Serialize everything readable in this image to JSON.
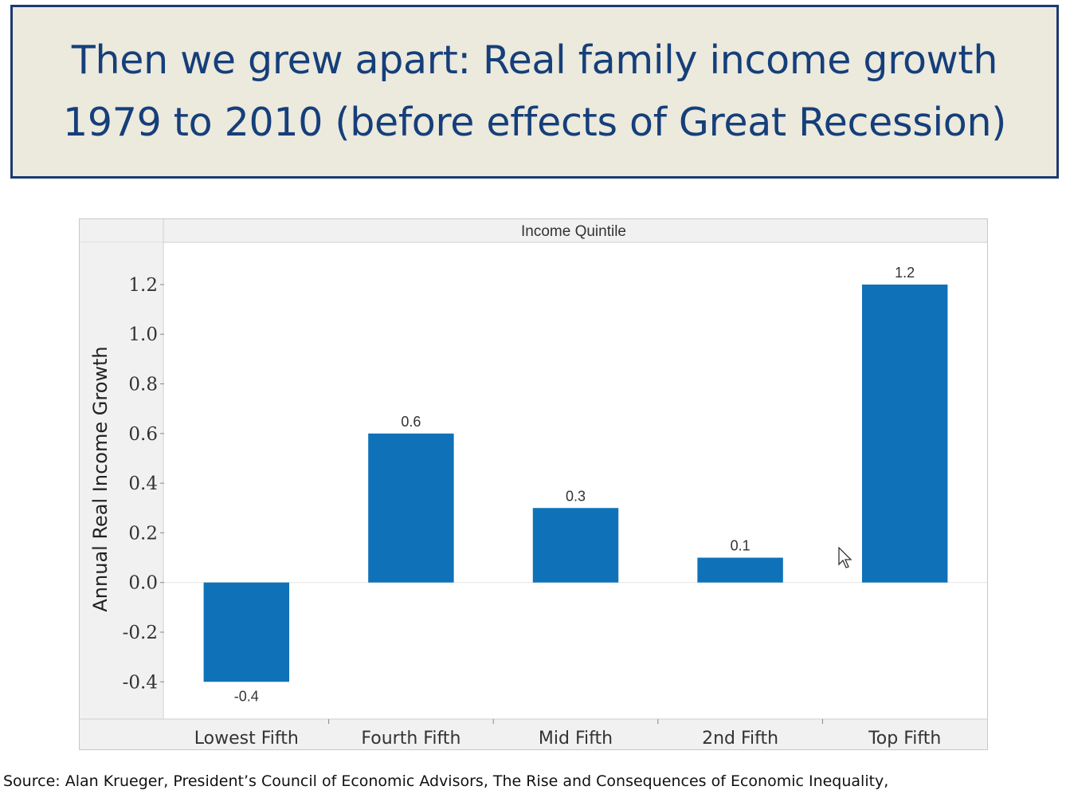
{
  "slide": {
    "title_line1": "Then we grew apart: Real family income growth",
    "title_line2": "1979 to 2010 (before effects of Great Recession)",
    "source": "Source: Alan Krueger, President’s Council of Economic Advisors, The Rise and Consequences of Economic Inequality,"
  },
  "chart_data": {
    "type": "bar",
    "header": "Income Quintile",
    "ylabel": "Annual Real Income Growth",
    "categories": [
      "Lowest Fifth",
      "Fourth Fifth",
      "Mid Fifth",
      "2nd Fifth",
      "Top Fifth"
    ],
    "values": [
      -0.4,
      0.6,
      0.3,
      0.1,
      1.2
    ],
    "data_labels": [
      "-0.4",
      "0.6",
      "0.3",
      "0.1",
      "1.2"
    ],
    "ylim": [
      -0.55,
      1.37
    ],
    "yticks": [
      -0.4,
      -0.2,
      0.0,
      0.2,
      0.4,
      0.6,
      0.8,
      1.0,
      1.2
    ],
    "ytick_labels": [
      "-0.4",
      "-0.2",
      "0.0",
      "0.2",
      "0.4",
      "0.6",
      "0.8",
      "1.0",
      "1.2"
    ],
    "bar_color": "#0f72b8",
    "grid": false,
    "legend": "none"
  },
  "icons": {
    "cursor": "mouse-pointer-icon"
  }
}
